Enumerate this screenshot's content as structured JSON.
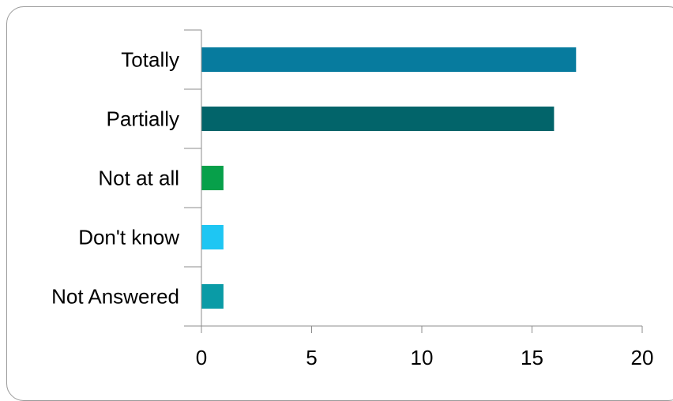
{
  "chart_data": {
    "type": "bar",
    "orientation": "horizontal",
    "categories": [
      "Totally",
      "Partially",
      "Not at all",
      "Don't know",
      "Not Answered"
    ],
    "values": [
      17,
      16,
      1,
      1,
      1
    ],
    "bar_colors": [
      "#077b9e",
      "#02646a",
      "#07a04a",
      "#1ec6f3",
      "#0a9ba6"
    ],
    "xlim": [
      0,
      20
    ],
    "x_ticks": [
      "0",
      "5",
      "10",
      "15",
      "20"
    ],
    "x_tick_values": [
      0,
      5,
      10,
      15,
      20
    ],
    "title": "",
    "xlabel": "",
    "ylabel": "",
    "grid": false,
    "legend": "none"
  }
}
